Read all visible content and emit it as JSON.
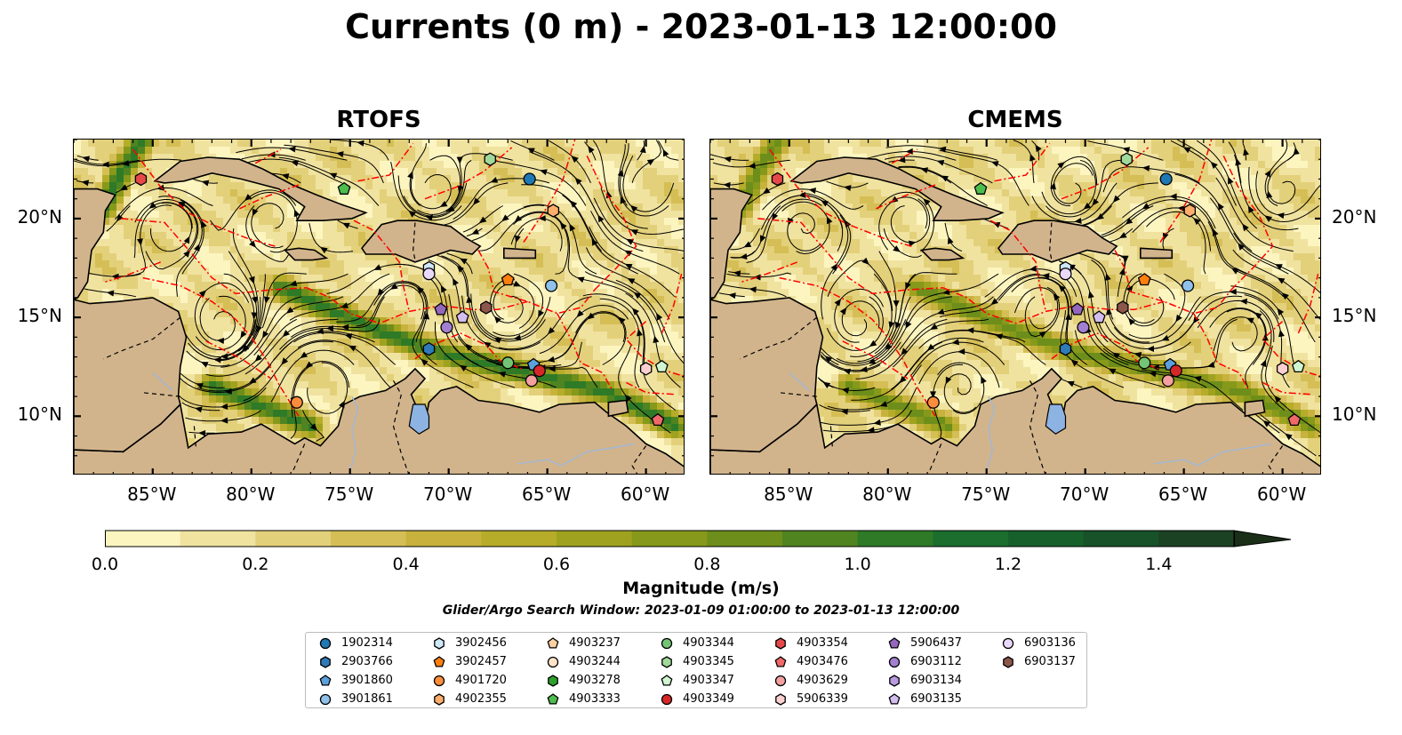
{
  "title": "Currents (0 m) - 2023-01-13 12:00:00",
  "panels": [
    {
      "name": "RTOFS"
    },
    {
      "name": "CMEMS"
    }
  ],
  "axes": {
    "lon_ticks": [
      "85°W",
      "80°W",
      "75°W",
      "70°W",
      "65°W",
      "60°W"
    ],
    "lat_ticks": [
      "20°N",
      "15°N",
      "10°N"
    ],
    "lon_range": [
      -89,
      -58
    ],
    "lat_range": [
      7,
      24
    ]
  },
  "colorbar": {
    "label": "Magnitude (m/s)",
    "ticks": [
      "0.0",
      "0.2",
      "0.4",
      "0.6",
      "0.8",
      "1.0",
      "1.2",
      "1.4"
    ],
    "range": [
      0,
      1.5
    ],
    "step": 0.1,
    "extend": "max",
    "colors": [
      "#fdf5c0",
      "#f0e3a0",
      "#e3d07a",
      "#d5be55",
      "#c8b23d",
      "#b6ac2a",
      "#9fa21f",
      "#86991a",
      "#6d8e1a",
      "#4f8420",
      "#2e7a27",
      "#1b6e2e",
      "#17602c",
      "#175228",
      "#1b4223",
      "#1a2e18"
    ]
  },
  "search_window": "Glider/Argo Search Window: 2023-01-09 01:00:00 to 2023-01-13 12:00:00",
  "map_colors": {
    "land": "#d2b48c",
    "eez": "#ff0000",
    "streamline": "#000000",
    "lake": "#8db3e2"
  },
  "legend": [
    {
      "id": "1902314",
      "marker": "circle",
      "color": "#1f77b4"
    },
    {
      "id": "2903766",
      "marker": "hexagon",
      "color": "#2f7bb9"
    },
    {
      "id": "3901860",
      "marker": "pentagon",
      "color": "#5aa0dc"
    },
    {
      "id": "3901861",
      "marker": "circle",
      "color": "#8fc1ea"
    },
    {
      "id": "3902456",
      "marker": "hexagon",
      "color": "#cfe8f8"
    },
    {
      "id": "3902457",
      "marker": "pentagon",
      "color": "#ff7f0e"
    },
    {
      "id": "4901720",
      "marker": "circle",
      "color": "#fd8d3c"
    },
    {
      "id": "4902355",
      "marker": "hexagon",
      "color": "#fdae6b"
    },
    {
      "id": "4903237",
      "marker": "pentagon",
      "color": "#fdd0a2"
    },
    {
      "id": "4903244",
      "marker": "circle",
      "color": "#ffe3c8"
    },
    {
      "id": "4903278",
      "marker": "hexagon",
      "color": "#2ca02c"
    },
    {
      "id": "4903333",
      "marker": "pentagon",
      "color": "#4dbd4d"
    },
    {
      "id": "4903344",
      "marker": "circle",
      "color": "#74c476"
    },
    {
      "id": "4903345",
      "marker": "hexagon",
      "color": "#a1d99b"
    },
    {
      "id": "4903347",
      "marker": "pentagon",
      "color": "#d0f5d0"
    },
    {
      "id": "4903349",
      "marker": "circle",
      "color": "#d62728"
    },
    {
      "id": "4903354",
      "marker": "hexagon",
      "color": "#e6484a"
    },
    {
      "id": "4903476",
      "marker": "pentagon",
      "color": "#f0686a"
    },
    {
      "id": "4903629",
      "marker": "circle",
      "color": "#f4a0a0"
    },
    {
      "id": "5906339",
      "marker": "hexagon",
      "color": "#fcd0d0"
    },
    {
      "id": "5906437",
      "marker": "pentagon",
      "color": "#9467bd"
    },
    {
      "id": "6903112",
      "marker": "circle",
      "color": "#a27fd0"
    },
    {
      "id": "6903134",
      "marker": "hexagon",
      "color": "#b79ae0"
    },
    {
      "id": "6903135",
      "marker": "pentagon",
      "color": "#d4bdf0"
    },
    {
      "id": "6903136",
      "marker": "circle",
      "color": "#ead9fb"
    },
    {
      "id": "6903137",
      "marker": "hexagon",
      "color": "#8c564b"
    }
  ],
  "floats": {
    "RTOFS": [
      {
        "id": "4903354",
        "lon": -85.6,
        "lat": 22.0
      },
      {
        "id": "4903333",
        "lon": -75.3,
        "lat": 21.5
      },
      {
        "id": "4903345",
        "lon": -67.9,
        "lat": 23.0
      },
      {
        "id": "1902314",
        "lon": -65.9,
        "lat": 22.0
      },
      {
        "id": "4902355",
        "lon": -64.7,
        "lat": 20.4
      },
      {
        "id": "3902456",
        "lon": -71.0,
        "lat": 17.5
      },
      {
        "id": "6903136",
        "lon": -71.0,
        "lat": 17.2
      },
      {
        "id": "3902457",
        "lon": -67.0,
        "lat": 16.9
      },
      {
        "id": "3901861",
        "lon": -64.8,
        "lat": 16.6
      },
      {
        "id": "5906437",
        "lon": -70.4,
        "lat": 15.4
      },
      {
        "id": "6903135",
        "lon": -69.3,
        "lat": 15.0
      },
      {
        "id": "6903137",
        "lon": -68.1,
        "lat": 15.5
      },
      {
        "id": "6903112",
        "lon": -70.1,
        "lat": 14.5
      },
      {
        "id": "2903766",
        "lon": -71.0,
        "lat": 13.4
      },
      {
        "id": "4903344",
        "lon": -67.0,
        "lat": 12.7
      },
      {
        "id": "3901860",
        "lon": -65.7,
        "lat": 12.6
      },
      {
        "id": "4903349",
        "lon": -65.4,
        "lat": 12.3
      },
      {
        "id": "4903629",
        "lon": -65.8,
        "lat": 11.8
      },
      {
        "id": "5906339",
        "lon": -60.0,
        "lat": 12.4
      },
      {
        "id": "4903347",
        "lon": -59.2,
        "lat": 12.5
      },
      {
        "id": "4903476",
        "lon": -59.4,
        "lat": 9.8
      },
      {
        "id": "4901720",
        "lon": -77.7,
        "lat": 10.7
      }
    ],
    "CMEMS": [
      {
        "id": "4903354",
        "lon": -85.6,
        "lat": 22.0
      },
      {
        "id": "4903333",
        "lon": -75.3,
        "lat": 21.5
      },
      {
        "id": "4903345",
        "lon": -67.9,
        "lat": 23.0
      },
      {
        "id": "1902314",
        "lon": -65.9,
        "lat": 22.0
      },
      {
        "id": "4902355",
        "lon": -64.7,
        "lat": 20.4
      },
      {
        "id": "3902456",
        "lon": -71.0,
        "lat": 17.5
      },
      {
        "id": "6903136",
        "lon": -71.0,
        "lat": 17.2
      },
      {
        "id": "3902457",
        "lon": -67.0,
        "lat": 16.9
      },
      {
        "id": "3901861",
        "lon": -64.8,
        "lat": 16.6
      },
      {
        "id": "5906437",
        "lon": -70.4,
        "lat": 15.4
      },
      {
        "id": "6903135",
        "lon": -69.3,
        "lat": 15.0
      },
      {
        "id": "6903137",
        "lon": -68.1,
        "lat": 15.5
      },
      {
        "id": "6903112",
        "lon": -70.1,
        "lat": 14.5
      },
      {
        "id": "2903766",
        "lon": -71.0,
        "lat": 13.4
      },
      {
        "id": "4903344",
        "lon": -67.0,
        "lat": 12.7
      },
      {
        "id": "3901860",
        "lon": -65.7,
        "lat": 12.6
      },
      {
        "id": "4903349",
        "lon": -65.4,
        "lat": 12.3
      },
      {
        "id": "4903629",
        "lon": -65.8,
        "lat": 11.8
      },
      {
        "id": "5906339",
        "lon": -60.0,
        "lat": 12.4
      },
      {
        "id": "4903347",
        "lon": -59.2,
        "lat": 12.5
      },
      {
        "id": "4903476",
        "lon": -59.4,
        "lat": 9.8
      },
      {
        "id": "4901720",
        "lon": -77.7,
        "lat": 10.7
      }
    ]
  }
}
